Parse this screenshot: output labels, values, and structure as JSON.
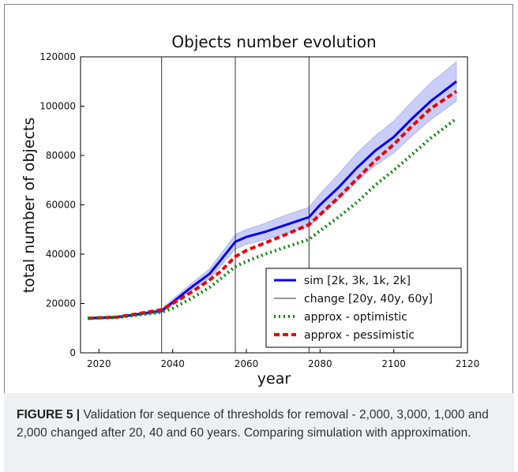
{
  "chart_data": {
    "type": "line",
    "title": "Objects number evolution",
    "x_label": "year",
    "y_label": "total number of objects",
    "x": [
      2017,
      2025,
      2030,
      2037,
      2040,
      2045,
      2050,
      2053,
      2057,
      2060,
      2065,
      2070,
      2077,
      2080,
      2085,
      2090,
      2095,
      2100,
      2105,
      2110,
      2117
    ],
    "series": [
      {
        "name": "sim [2k, 3k, 1k, 2k]",
        "color": "#0000ee",
        "style": "solid",
        "values": [
          14000,
          14500,
          15500,
          17000,
          20500,
          26500,
          32000,
          37500,
          45000,
          47000,
          49000,
          51500,
          55000,
          60000,
          67000,
          75000,
          82000,
          87500,
          95000,
          102000,
          110000
        ]
      },
      {
        "name": "approx - optimistic",
        "color": "#008800",
        "style": "dotted",
        "values": [
          14000,
          14300,
          15200,
          16500,
          18000,
          22000,
          26500,
          30000,
          35000,
          37000,
          40000,
          42500,
          46000,
          49500,
          55000,
          61000,
          68000,
          74000,
          80500,
          87000,
          95000
        ]
      },
      {
        "name": "approx - pessimistic",
        "color": "#ee0000",
        "style": "dashed",
        "values": [
          14000,
          14500,
          15700,
          17500,
          20000,
          24500,
          29500,
          33000,
          39000,
          41500,
          44500,
          47500,
          52000,
          56000,
          63000,
          70500,
          78000,
          84500,
          92000,
          99000,
          106000
        ]
      }
    ],
    "band": {
      "color": "#8890ee",
      "lower": [
        13500,
        14000,
        15000,
        16200,
        19300,
        25000,
        30000,
        35000,
        42000,
        44000,
        45800,
        48000,
        51000,
        55500,
        62000,
        69500,
        76000,
        81000,
        88000,
        94500,
        102000
      ],
      "upper": [
        14500,
        15000,
        16000,
        17800,
        21700,
        28000,
        34000,
        40000,
        48000,
        50000,
        52500,
        55500,
        59000,
        64500,
        72500,
        81000,
        88000,
        94000,
        102000,
        109500,
        118000
      ]
    },
    "change": {
      "name": "change [20y, 40y, 60y]",
      "color": "#333333",
      "x": [
        2037,
        2057,
        2077
      ]
    },
    "xlim": [
      2015,
      2120
    ],
    "xticks": [
      2020,
      2040,
      2060,
      2080,
      2100,
      2120
    ],
    "ylim": [
      0,
      120000
    ],
    "yticks": [
      0,
      20000,
      40000,
      60000,
      80000,
      100000,
      120000
    ],
    "legend": "lower right"
  },
  "caption": {
    "label": "FIGURE 5 |",
    "text": "Validation for sequence of thresholds for removal - 2,000, 3,000, 1,000 and 2,000 changed after 20, 40 and 60 years. Comparing simulation with approximation."
  }
}
